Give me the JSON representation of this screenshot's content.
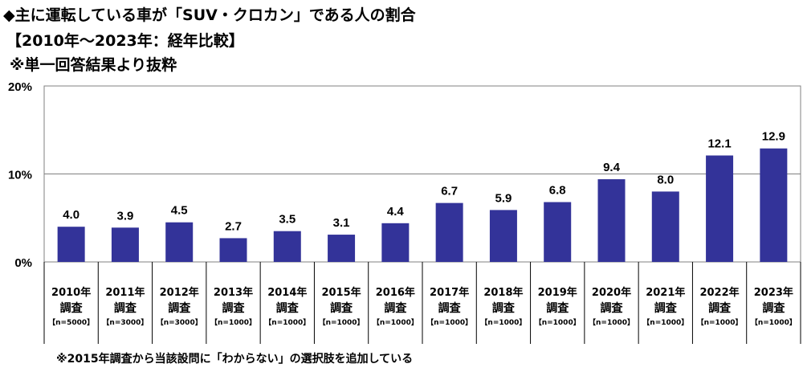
{
  "title_lines": [
    "◆主に運転している車が「SUV・クロカン」である人の割合",
    "【2010年～2023年：経年比較】",
    "※単一回答結果より抜粋"
  ],
  "footnote": "※2015年調査から当該設問に「わからない」の選択肢を追加している",
  "colors": {
    "bar": "#333399",
    "grid": "#808080"
  },
  "chart_data": {
    "type": "bar",
    "title": "主に運転している車が「SUV・クロカン」である人の割合",
    "categories": [
      "2010年",
      "2011年",
      "2012年",
      "2013年",
      "2014年",
      "2015年",
      "2016年",
      "2017年",
      "2018年",
      "2019年",
      "2020年",
      "2021年",
      "2022年",
      "2023年"
    ],
    "category_sub": "調査",
    "sample_sizes": [
      "【n=5000】",
      "【n=3000】",
      "【n=3000】",
      "【n=1000】",
      "【n=1000】",
      "【n=1000】",
      "【n=1000】",
      "【n=1000】",
      "【n=1000】",
      "【n=1000】",
      "【n=1000】",
      "【n=1000】",
      "【n=1000】",
      "【n=1000】"
    ],
    "values": [
      4.0,
      3.9,
      4.5,
      2.7,
      3.5,
      3.1,
      4.4,
      6.7,
      5.9,
      6.8,
      9.4,
      8.0,
      12.1,
      12.9
    ],
    "ylim": [
      0,
      20
    ],
    "yticks": [
      "0%",
      "10%",
      "20%"
    ],
    "ytick_values": [
      0,
      10,
      20
    ],
    "grid": true,
    "xlabel": "",
    "ylabel": ""
  }
}
